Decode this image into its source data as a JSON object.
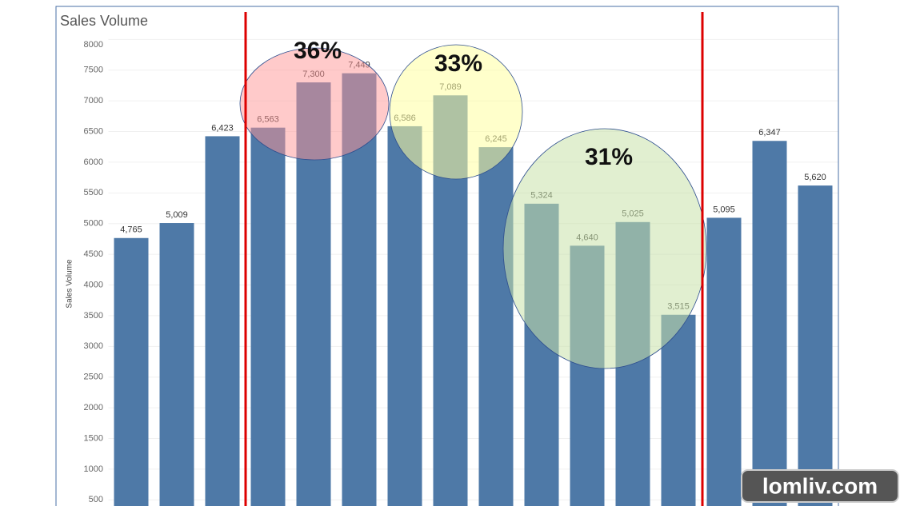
{
  "chart_data": {
    "type": "bar",
    "title": "Sales Volume",
    "y_label": "Sales Volume",
    "categories": [
      null,
      null,
      null,
      null,
      null,
      null,
      null,
      null,
      null,
      null,
      null,
      null,
      null,
      null,
      null,
      null
    ],
    "values": [
      4765,
      5009,
      6423,
      6563,
      7300,
      7449,
      6586,
      7089,
      6245,
      5324,
      4640,
      5025,
      3515,
      5095,
      6347,
      5620
    ],
    "value_labels": [
      "4,765",
      "5,009",
      "6,423",
      "6,563",
      "7,300",
      "7,449",
      "6,586",
      "7,089",
      "6,245",
      "5,324",
      "4,640",
      "5,025",
      "3,515",
      "5,095",
      "6,347",
      "5,620"
    ],
    "color": "#4e79a7",
    "ylim": [
      400,
      8000
    ],
    "yticks": [
      500,
      1000,
      1500,
      2000,
      2500,
      3000,
      3500,
      4000,
      4500,
      5000,
      5500,
      6000,
      6500,
      7000,
      7500,
      8000
    ],
    "grid": true,
    "annotations": [
      "36%",
      "33%",
      "31%"
    ],
    "watermark": "lomliv.com"
  }
}
